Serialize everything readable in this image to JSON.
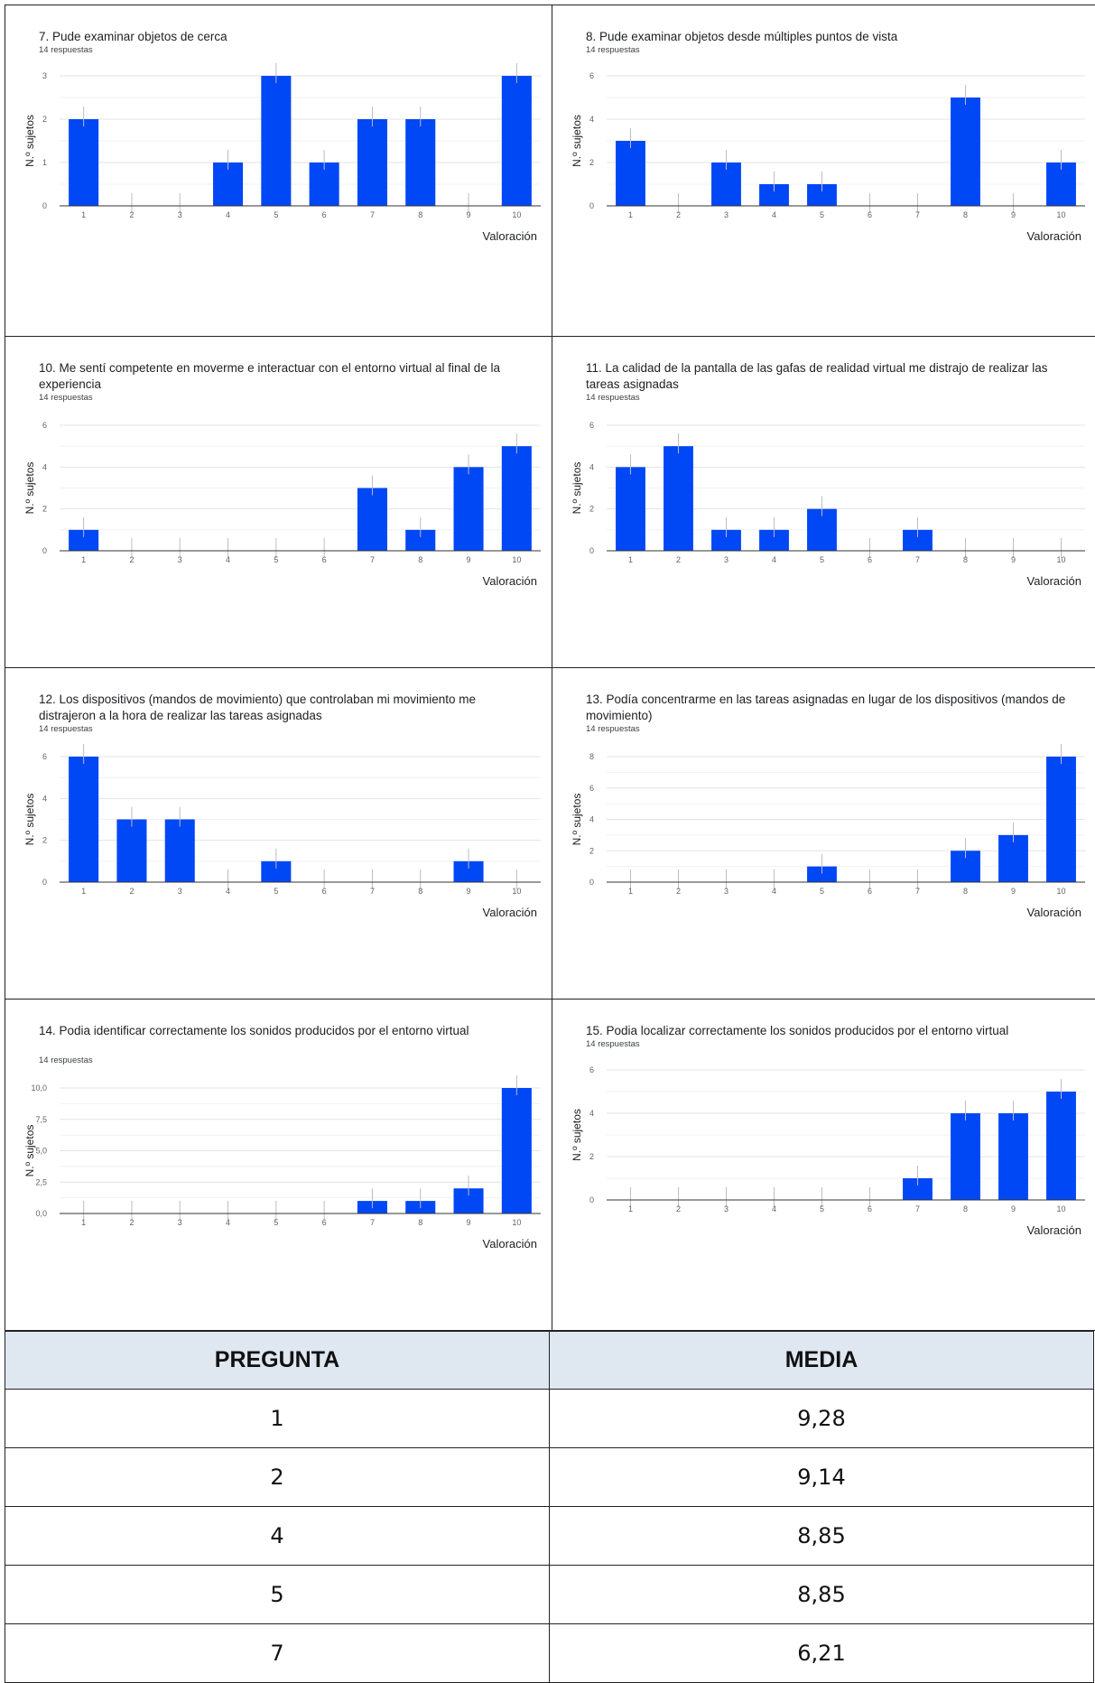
{
  "chart_data": [
    {
      "type": "bar",
      "title": "7. Pude examinar objetos de cerca",
      "subtitle": "14 respuestas",
      "xlabel": "Valoración",
      "ylabel": "N.º sujetos",
      "categories": [
        "1",
        "2",
        "3",
        "4",
        "5",
        "6",
        "7",
        "8",
        "9",
        "10"
      ],
      "values": [
        2,
        0,
        0,
        1,
        3,
        1,
        2,
        2,
        0,
        3
      ],
      "yticks": [
        "0",
        "1",
        "2",
        "3"
      ],
      "ylim": [
        0,
        3
      ],
      "grid": true,
      "color": "#0047f6"
    },
    {
      "type": "bar",
      "title": "8. Pude examinar objetos desde múltiples puntos de vista",
      "subtitle": "14 respuestas",
      "xlabel": "Valoración",
      "ylabel": "N.º sujetos",
      "categories": [
        "1",
        "2",
        "3",
        "4",
        "5",
        "6",
        "7",
        "8",
        "9",
        "10"
      ],
      "values": [
        3,
        0,
        2,
        1,
        1,
        0,
        0,
        5,
        0,
        2
      ],
      "yticks": [
        "0",
        "2",
        "4",
        "6"
      ],
      "ylim": [
        0,
        6
      ],
      "grid": true,
      "color": "#0047f6"
    },
    {
      "type": "bar",
      "title": "10. Me sentí competente en moverme e interactuar con el entorno virtual al final de la experiencia",
      "subtitle": "14 respuestas",
      "xlabel": "Valoración",
      "ylabel": "N.º sujetos",
      "categories": [
        "1",
        "2",
        "3",
        "4",
        "5",
        "6",
        "7",
        "8",
        "9",
        "10"
      ],
      "values": [
        1,
        0,
        0,
        0,
        0,
        0,
        3,
        1,
        4,
        5
      ],
      "yticks": [
        "0",
        "2",
        "4",
        "6"
      ],
      "ylim": [
        0,
        6
      ],
      "grid": true,
      "color": "#0047f6"
    },
    {
      "type": "bar",
      "title": "11. La calidad de la pantalla de las gafas de realidad virtual me distrajo de realizar las tareas asignadas",
      "subtitle": "14 respuestas",
      "xlabel": "Valoración",
      "ylabel": "N.º sujetos",
      "categories": [
        "1",
        "2",
        "3",
        "4",
        "5",
        "6",
        "7",
        "8",
        "9",
        "10"
      ],
      "values": [
        4,
        5,
        1,
        1,
        2,
        0,
        1,
        0,
        0,
        0
      ],
      "yticks": [
        "0",
        "2",
        "4",
        "6"
      ],
      "ylim": [
        0,
        6
      ],
      "grid": true,
      "color": "#0047f6"
    },
    {
      "type": "bar",
      "title": "12. Los dispositivos (mandos de movimiento) que controlaban mi movimiento me distrajeron a la hora de realizar las tareas asignadas",
      "subtitle": "14 respuestas",
      "xlabel": "Valoración",
      "ylabel": "N.º sujetos",
      "categories": [
        "1",
        "2",
        "3",
        "4",
        "5",
        "6",
        "7",
        "8",
        "9",
        "10"
      ],
      "values": [
        6,
        3,
        3,
        0,
        1,
        0,
        0,
        0,
        1,
        0
      ],
      "yticks": [
        "0",
        "2",
        "4",
        "6"
      ],
      "ylim": [
        0,
        6
      ],
      "grid": true,
      "color": "#0047f6"
    },
    {
      "type": "bar",
      "title": "13. Podía concentrarme en las tareas asignadas en lugar de los dispositivos (mandos de movimiento)",
      "subtitle": "14 respuestas",
      "xlabel": "Valoración",
      "ylabel": "N.º sujetos",
      "categories": [
        "1",
        "2",
        "3",
        "4",
        "5",
        "6",
        "7",
        "8",
        "9",
        "10"
      ],
      "values": [
        0,
        0,
        0,
        0,
        1,
        0,
        0,
        2,
        3,
        8
      ],
      "yticks": [
        "0",
        "2",
        "4",
        "6",
        "8"
      ],
      "ylim": [
        0,
        8
      ],
      "grid": true,
      "color": "#0047f6"
    },
    {
      "type": "bar",
      "title": "14. Podia identificar correctamente los sonidos producidos por el entorno virtual",
      "subtitle": "14 respuestas",
      "xlabel": "Valoración",
      "ylabel": "N.º sujetos",
      "categories": [
        "1",
        "2",
        "3",
        "4",
        "5",
        "6",
        "7",
        "8",
        "9",
        "10"
      ],
      "values": [
        0,
        0,
        0,
        0,
        0,
        0,
        1,
        1,
        2,
        10
      ],
      "yticks": [
        "0,0",
        "2,5",
        "5,0",
        "7,5",
        "10,0"
      ],
      "ylim": [
        0,
        10
      ],
      "grid": true,
      "color": "#0047f6"
    },
    {
      "type": "bar",
      "title": "15. Podia localizar correctamente los sonidos producidos por el entorno virtual",
      "subtitle": "14 respuestas",
      "xlabel": "Valoración",
      "ylabel": "N.º sujetos",
      "categories": [
        "1",
        "2",
        "3",
        "4",
        "5",
        "6",
        "7",
        "8",
        "9",
        "10"
      ],
      "values": [
        0,
        0,
        0,
        0,
        0,
        0,
        1,
        4,
        4,
        5
      ],
      "yticks": [
        "0",
        "2",
        "4",
        "6"
      ],
      "ylim": [
        0,
        6
      ],
      "grid": true,
      "color": "#0047f6"
    }
  ],
  "means_table": {
    "headers": [
      "PREGUNTA",
      "MEDIA"
    ],
    "rows": [
      [
        "1",
        "9,28"
      ],
      [
        "2",
        "9,14"
      ],
      [
        "4",
        "8,85"
      ],
      [
        "5",
        "8,85"
      ],
      [
        "7",
        "6,21"
      ]
    ]
  }
}
